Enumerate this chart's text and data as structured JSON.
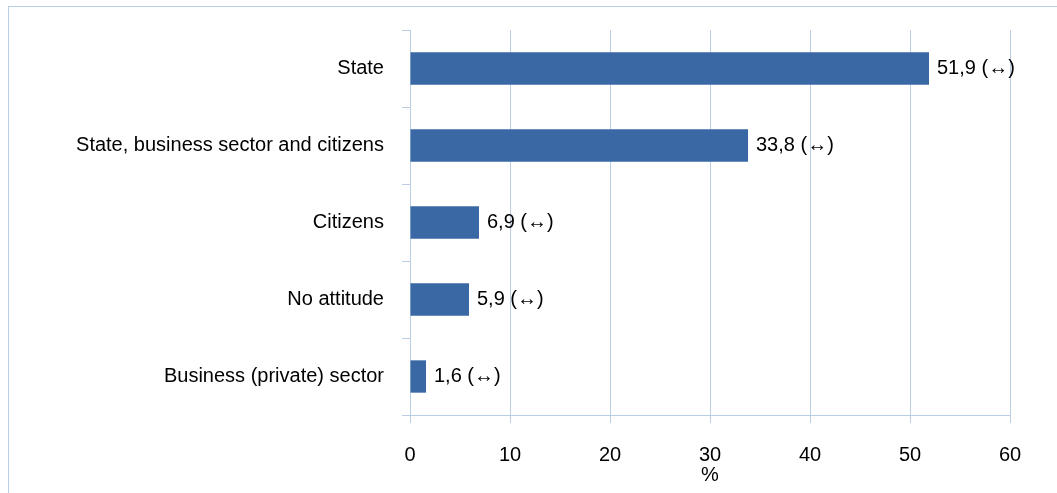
{
  "chart_data": {
    "type": "bar",
    "orientation": "horizontal",
    "xlabel": "%",
    "categories": [
      "State",
      "State, business sector and citizens",
      "Citizens",
      "No attitude",
      "Business (private) sector"
    ],
    "values": [
      51.9,
      33.8,
      6.9,
      5.9,
      1.6
    ],
    "value_labels": [
      "51,9 (↔)",
      "33,8 (↔)",
      "6,9 (↔)",
      "5,9 (↔)",
      "1,6 (↔)"
    ],
    "color": "#3a68a5",
    "xlim": [
      0,
      60
    ],
    "xticks": [
      0,
      10,
      20,
      30,
      40,
      50,
      60
    ],
    "grid": "x"
  }
}
